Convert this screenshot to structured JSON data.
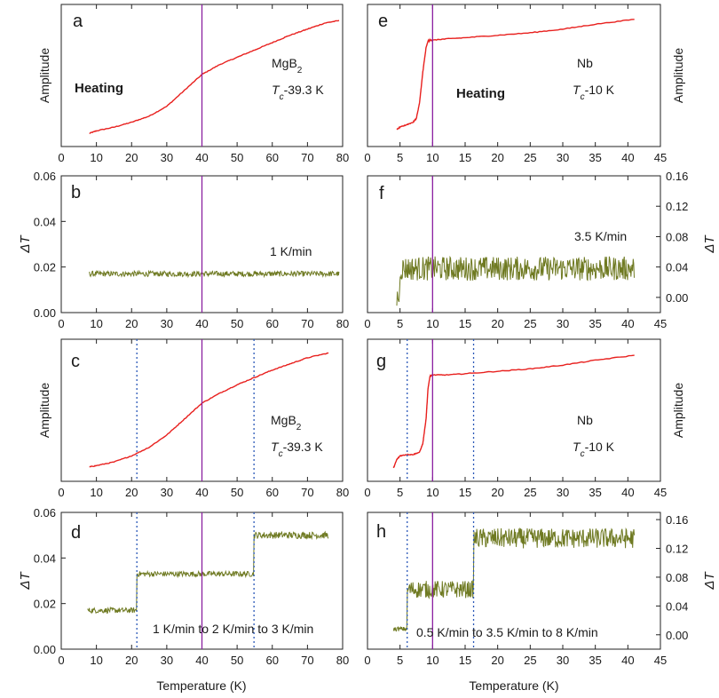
{
  "colors": {
    "amplitude": "#e8201e",
    "delta_t": "#6f7a22",
    "tc_marker": "#8a1fa0",
    "dotted_marker": "#2a58b8",
    "rate_label": "#2a58b8"
  },
  "x_axis_label": "Temperature (K)",
  "chart_data": [
    {
      "panel": "a",
      "type": "line",
      "ylabel": "Amplitude",
      "xlim": [
        0,
        80
      ],
      "xticks": [
        0,
        10,
        20,
        30,
        40,
        50,
        60,
        70,
        80
      ],
      "ytick_labels": [],
      "y_axis_side": "left",
      "annotations": [
        "Heating",
        "MgB2",
        "Tc-39.3 K"
      ],
      "tc_line_x": 40,
      "dotted_x": [],
      "series": [
        {
          "x": [
            8,
            10,
            15,
            20,
            25,
            30,
            35,
            40,
            45,
            50,
            55,
            60,
            65,
            70,
            75,
            79
          ],
          "y": [
            0.05,
            0.07,
            0.1,
            0.14,
            0.19,
            0.27,
            0.4,
            0.53,
            0.61,
            0.67,
            0.73,
            0.79,
            0.85,
            0.9,
            0.95,
            0.97
          ]
        }
      ]
    },
    {
      "panel": "b",
      "type": "line",
      "ylabel": "ΔT",
      "xlim": [
        0,
        80
      ],
      "ylim": [
        0,
        0.06
      ],
      "xticks": [
        0,
        10,
        20,
        30,
        40,
        50,
        60,
        70,
        80
      ],
      "yticks": [
        0.0,
        0.02,
        0.04,
        0.06
      ],
      "ytick_labels": [
        "0.00",
        "0.02",
        "0.04",
        "0.06"
      ],
      "y_axis_side": "left",
      "rate_label": "1 K/min",
      "tc_line_x": 40,
      "dotted_x": [],
      "noise": {
        "x_start": 8,
        "x_end": 79,
        "segments": [
          {
            "from": 8,
            "to": 79,
            "mean": 0.017,
            "amp": 0.0012
          }
        ]
      }
    },
    {
      "panel": "c",
      "type": "line",
      "ylabel": "Amplitude",
      "xlim": [
        0,
        80
      ],
      "xticks": [
        0,
        10,
        20,
        30,
        40,
        50,
        60,
        70,
        80
      ],
      "ytick_labels": [],
      "y_axis_side": "left",
      "annotations": [
        "MgB2",
        "Tc-39.3 K"
      ],
      "tc_line_x": 40,
      "dotted_x": [
        21.5,
        54.8
      ],
      "series": [
        {
          "x": [
            8,
            10,
            15,
            20,
            25,
            30,
            35,
            40,
            45,
            50,
            55,
            60,
            65,
            70,
            76
          ],
          "y": [
            0.06,
            0.07,
            0.1,
            0.15,
            0.22,
            0.32,
            0.45,
            0.58,
            0.66,
            0.73,
            0.79,
            0.85,
            0.9,
            0.95,
            0.99
          ]
        }
      ]
    },
    {
      "panel": "d",
      "type": "line",
      "ylabel": "ΔT",
      "xlim": [
        0,
        80
      ],
      "ylim": [
        0,
        0.06
      ],
      "xticks": [
        0,
        10,
        20,
        30,
        40,
        50,
        60,
        70,
        80
      ],
      "yticks": [
        0.0,
        0.02,
        0.04,
        0.06
      ],
      "ytick_labels": [
        "0.00",
        "0.02",
        "0.04",
        "0.06"
      ],
      "y_axis_side": "left",
      "rate_label": "1 K/min to 2 K/min to 3 K/min",
      "tc_line_x": 40,
      "dotted_x": [
        21.5,
        54.8
      ],
      "noise": {
        "x_start": 7.5,
        "x_end": 76,
        "segments": [
          {
            "from": 7.5,
            "to": 21.5,
            "mean": 0.017,
            "amp": 0.0012
          },
          {
            "from": 21.5,
            "to": 54.8,
            "mean": 0.033,
            "amp": 0.0012
          },
          {
            "from": 54.8,
            "to": 76,
            "mean": 0.05,
            "amp": 0.0015
          }
        ]
      }
    },
    {
      "panel": "e",
      "type": "line",
      "ylabel": "Amplitude",
      "xlim": [
        0,
        45
      ],
      "xticks": [
        0,
        5,
        10,
        15,
        20,
        25,
        30,
        35,
        40,
        45
      ],
      "ytick_labels": [],
      "y_axis_side": "right",
      "annotations": [
        "Heating",
        "Nb",
        "Tc-10 K"
      ],
      "tc_line_x": 10,
      "dotted_x": [],
      "series": [
        {
          "x": [
            4.5,
            5,
            6,
            7,
            7.5,
            8,
            8.5,
            9,
            9.3,
            9.6,
            10,
            12,
            15,
            20,
            25,
            30,
            35,
            41
          ],
          "y": [
            0.08,
            0.1,
            0.12,
            0.14,
            0.17,
            0.3,
            0.55,
            0.75,
            0.8,
            0.81,
            0.81,
            0.82,
            0.83,
            0.85,
            0.87,
            0.9,
            0.94,
            0.98
          ]
        }
      ]
    },
    {
      "panel": "f",
      "type": "line",
      "ylabel": "ΔT",
      "xlim": [
        0,
        45
      ],
      "ylim": [
        -0.02,
        0.16
      ],
      "xticks": [
        0,
        5,
        10,
        15,
        20,
        25,
        30,
        35,
        40,
        45
      ],
      "yticks": [
        0.0,
        0.04,
        0.08,
        0.12,
        0.16
      ],
      "ytick_labels": [
        "0.00",
        "0.04",
        "0.08",
        "0.12",
        "0.16"
      ],
      "y_axis_side": "right",
      "rate_label": "3.5 K/min",
      "tc_line_x": 10,
      "dotted_x": [],
      "noise": {
        "x_start": 4.5,
        "x_end": 41,
        "segments": [
          {
            "from": 5,
            "to": 41,
            "mean": 0.038,
            "amp": 0.016
          }
        ]
      }
    },
    {
      "panel": "g",
      "type": "line",
      "ylabel": "Amplitude",
      "xlim": [
        0,
        45
      ],
      "xticks": [
        0,
        5,
        10,
        15,
        20,
        25,
        30,
        35,
        40,
        45
      ],
      "ytick_labels": [],
      "y_axis_side": "right",
      "annotations": [
        "Nb",
        "Tc-10 K"
      ],
      "tc_line_x": 10,
      "dotted_x": [
        6.1,
        16.3
      ],
      "series": [
        {
          "x": [
            4,
            4.5,
            5,
            6,
            7,
            8,
            8.5,
            9,
            9.3,
            9.6,
            10,
            12,
            15,
            20,
            25,
            30,
            35,
            41
          ],
          "y": [
            0.05,
            0.12,
            0.15,
            0.16,
            0.16,
            0.18,
            0.25,
            0.45,
            0.7,
            0.8,
            0.81,
            0.81,
            0.82,
            0.84,
            0.86,
            0.89,
            0.93,
            0.97
          ]
        }
      ]
    },
    {
      "panel": "h",
      "type": "line",
      "ylabel": "ΔT",
      "xlim": [
        0,
        45
      ],
      "ylim": [
        -0.02,
        0.17
      ],
      "xticks": [
        0,
        5,
        10,
        15,
        20,
        25,
        30,
        35,
        40,
        45
      ],
      "yticks": [
        0.0,
        0.04,
        0.08,
        0.12,
        0.16
      ],
      "ytick_labels": [
        "0.00",
        "0.04",
        "0.08",
        "0.12",
        "0.16"
      ],
      "y_axis_side": "right",
      "rate_label": "0.5 K/min to 3.5 K/min to 8 K/min",
      "tc_line_x": 10,
      "dotted_x": [
        6.1,
        16.3
      ],
      "noise": {
        "x_start": 4,
        "x_end": 41,
        "segments": [
          {
            "from": 4,
            "to": 6.1,
            "mean": 0.008,
            "amp": 0.003
          },
          {
            "from": 6.1,
            "to": 16.3,
            "mean": 0.063,
            "amp": 0.012
          },
          {
            "from": 16.3,
            "to": 41,
            "mean": 0.134,
            "amp": 0.014
          }
        ]
      }
    }
  ]
}
